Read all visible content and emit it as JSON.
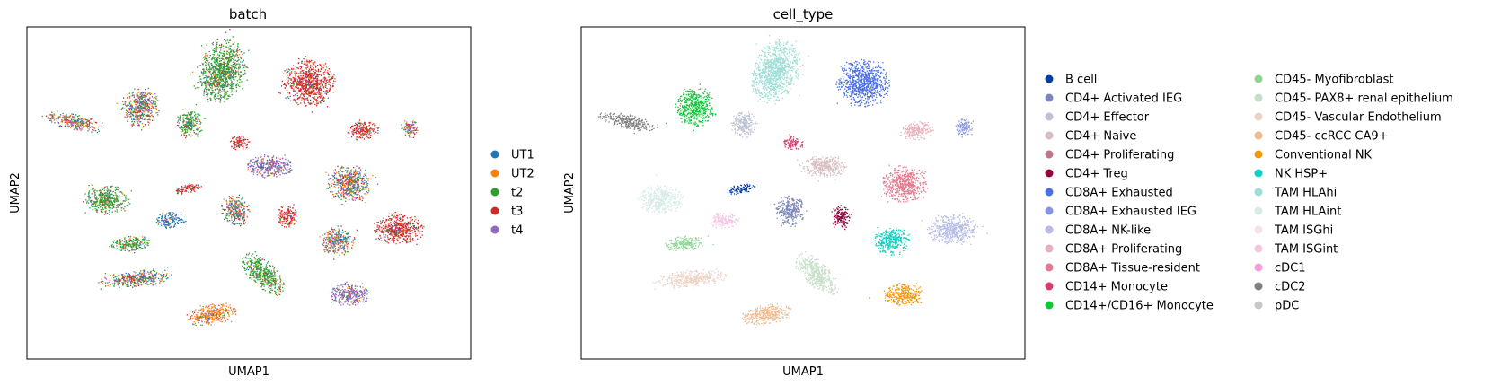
{
  "chart_data": [
    {
      "type": "scatter",
      "title": "batch",
      "xlabel": "UMAP1",
      "ylabel": "UMAP2",
      "grid": false,
      "legend_position": "right",
      "series": [
        {
          "name": "UT1",
          "color": "#1f77b4"
        },
        {
          "name": "UT2",
          "color": "#ff7f0e"
        },
        {
          "name": "t2",
          "color": "#2ca02c"
        },
        {
          "name": "t3",
          "color": "#d62728"
        },
        {
          "name": "t4",
          "color": "#9467bd"
        }
      ]
    },
    {
      "type": "scatter",
      "title": "cell_type",
      "xlabel": "UMAP1",
      "ylabel": "UMAP2",
      "grid": false,
      "legend_position": "right",
      "series": [
        {
          "name": "B cell",
          "color": "#023fa5"
        },
        {
          "name": "CD4+ Activated IEG",
          "color": "#7d87b9"
        },
        {
          "name": "CD4+ Effector",
          "color": "#bec1d4"
        },
        {
          "name": "CD4+ Naive",
          "color": "#d6bcc0"
        },
        {
          "name": "CD4+ Proliferating",
          "color": "#bb7784"
        },
        {
          "name": "CD4+ Treg",
          "color": "#8e063b"
        },
        {
          "name": "CD8A+ Exhausted",
          "color": "#4a6fe3"
        },
        {
          "name": "CD8A+ Exhausted IEG",
          "color": "#8595e1"
        },
        {
          "name": "CD8A+ NK-like",
          "color": "#b5bbe3"
        },
        {
          "name": "CD8A+ Proliferating",
          "color": "#e6afb9"
        },
        {
          "name": "CD8A+ Tissue-resident",
          "color": "#e07b91"
        },
        {
          "name": "CD14+ Monocyte",
          "color": "#d33f6a"
        },
        {
          "name": "CD14+/CD16+ Monocyte",
          "color": "#11c638"
        },
        {
          "name": "CD45- Myofibroblast",
          "color": "#8dd593"
        },
        {
          "name": "CD45- PAX8+ renal epithelium",
          "color": "#c6dec7"
        },
        {
          "name": "CD45- Vascular Endothelium",
          "color": "#ead3c6"
        },
        {
          "name": "CD45- ccRCC CA9+",
          "color": "#f0b98d"
        },
        {
          "name": "Conventional NK",
          "color": "#ef9708"
        },
        {
          "name": "NK HSP+",
          "color": "#0fcfc0"
        },
        {
          "name": "TAM HLAhi",
          "color": "#9cded6"
        },
        {
          "name": "TAM HLAint",
          "color": "#d5eae7"
        },
        {
          "name": "TAM ISGhi",
          "color": "#f3e1eb"
        },
        {
          "name": "TAM ISGint",
          "color": "#f6c4e1"
        },
        {
          "name": "cDC1",
          "color": "#f79cd4"
        },
        {
          "name": "cDC2",
          "color": "#7f7f7f"
        },
        {
          "name": "pDC",
          "color": "#c7c7c7"
        }
      ]
    }
  ]
}
